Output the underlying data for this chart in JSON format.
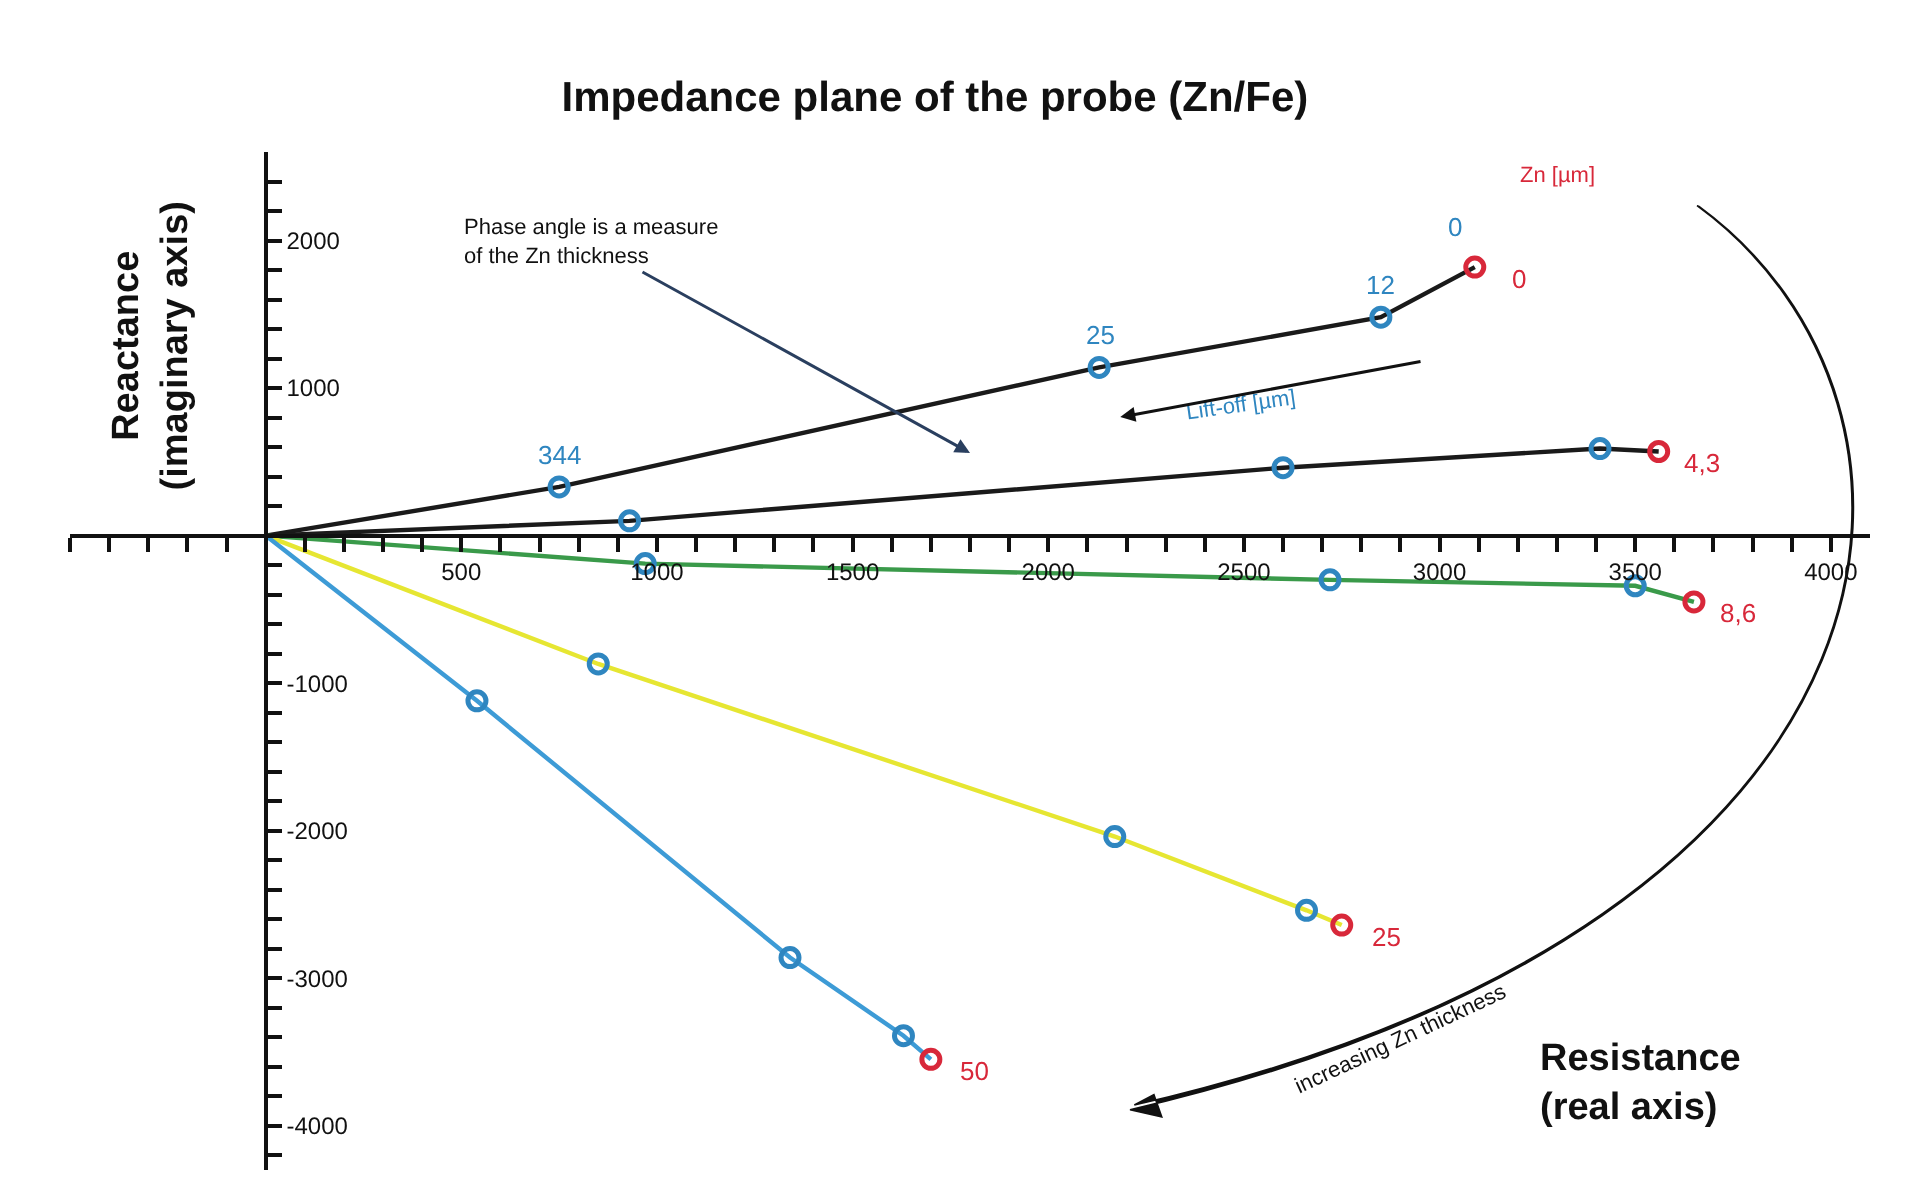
{
  "chart_data": {
    "type": "line",
    "title": "Impedance plane of the probe (Zn/Fe)",
    "xlabel": "Resistance\n(real axis)",
    "ylabel": "Reactance\n(imaginary axis)",
    "xlim": [
      -500,
      4100
    ],
    "ylim": [
      -4300,
      2600
    ],
    "xticks": [
      {
        "value": -500,
        "label": null
      },
      {
        "value": -400,
        "label": null
      },
      {
        "value": -300,
        "label": null
      },
      {
        "value": -200,
        "label": null
      },
      {
        "value": -100,
        "label": null
      },
      {
        "value": 100,
        "label": null
      },
      {
        "value": 200,
        "label": null
      },
      {
        "value": 300,
        "label": null
      },
      {
        "value": 400,
        "label": null
      },
      500,
      {
        "value": 600,
        "label": null
      },
      {
        "value": 700,
        "label": null
      },
      {
        "value": 800,
        "label": null
      },
      {
        "value": 900,
        "label": null
      },
      1000,
      {
        "value": 1100,
        "label": null
      },
      {
        "value": 1200,
        "label": null
      },
      {
        "value": 1300,
        "label": null
      },
      {
        "value": 1400,
        "label": null
      },
      1500,
      {
        "value": 1600,
        "label": null
      },
      {
        "value": 1700,
        "label": null
      },
      {
        "value": 1800,
        "label": null
      },
      {
        "value": 1900,
        "label": null
      },
      2000,
      {
        "value": 2100,
        "label": null
      },
      {
        "value": 2200,
        "label": null
      },
      {
        "value": 2300,
        "label": null
      },
      {
        "value": 2400,
        "label": null
      },
      2500,
      {
        "value": 2600,
        "label": null
      },
      {
        "value": 2700,
        "label": null
      },
      {
        "value": 2800,
        "label": null
      },
      {
        "value": 2900,
        "label": null
      },
      3000,
      {
        "value": 3100,
        "label": null
      },
      {
        "value": 3200,
        "label": null
      },
      {
        "value": 3300,
        "label": null
      },
      {
        "value": 3400,
        "label": null
      },
      3500,
      {
        "value": 3600,
        "label": null
      },
      {
        "value": 3700,
        "label": null
      },
      {
        "value": 3800,
        "label": null
      },
      {
        "value": 3900,
        "label": null
      },
      4000
    ],
    "yticks": [
      {
        "value": -4200,
        "label": null
      },
      -4000,
      {
        "value": -3800,
        "label": null
      },
      {
        "value": -3600,
        "label": null
      },
      {
        "value": -3400,
        "label": null
      },
      {
        "value": -3200,
        "label": null
      },
      -3000,
      {
        "value": -2800,
        "label": null
      },
      {
        "value": -2600,
        "label": null
      },
      {
        "value": -2400,
        "label": null
      },
      {
        "value": -2200,
        "label": null
      },
      -2000,
      {
        "value": -1800,
        "label": null
      },
      {
        "value": -1600,
        "label": null
      },
      {
        "value": -1400,
        "label": null
      },
      {
        "value": -1200,
        "label": null
      },
      -1000,
      {
        "value": -800,
        "label": null
      },
      {
        "value": -600,
        "label": null
      },
      {
        "value": -400,
        "label": null
      },
      {
        "value": -200,
        "label": null
      },
      {
        "value": 200,
        "label": null
      },
      {
        "value": 400,
        "label": null
      },
      {
        "value": 600,
        "label": null
      },
      {
        "value": 800,
        "label": null
      },
      1000,
      {
        "value": 1200,
        "label": null
      },
      {
        "value": 1400,
        "label": null
      },
      {
        "value": 1600,
        "label": null
      },
      {
        "value": 1800,
        "label": null
      },
      2000,
      {
        "value": 2200,
        "label": null
      },
      {
        "value": 2400,
        "label": null
      }
    ],
    "series": [
      {
        "marker": "none",
        "color": "#1a1a1a",
        "x": [
          0,
          750,
          2130,
          2850,
          3090
        ],
        "values": [
          0,
          330,
          1140,
          1480,
          1820
        ]
      },
      {
        "marker": "none",
        "color": "#1a1a1a",
        "x": [
          0,
          930,
          2600,
          3410,
          3560
        ],
        "values": [
          0,
          100,
          460,
          590,
          570
        ]
      },
      {
        "marker": "none",
        "color": "#3a9a4a",
        "x": [
          0,
          970,
          2720,
          3500,
          3650
        ],
        "values": [
          0,
          -190,
          -300,
          -340,
          -450
        ]
      },
      {
        "marker": "none",
        "color": "#e6e632",
        "x": [
          0,
          850,
          2170,
          2660,
          2750
        ],
        "values": [
          0,
          -870,
          -2040,
          -2540,
          -2640
        ]
      },
      {
        "marker": "none",
        "color": "#3d9bd6",
        "x": [
          0,
          540,
          1340,
          1630,
          1700
        ],
        "values": [
          0,
          -1120,
          -2860,
          -3390,
          -3550
        ]
      },
      {
        "type": "scatter",
        "marker": "circle",
        "name": "Lift-off [µm]",
        "color": "#2f86c0",
        "x": [
          750,
          2130,
          2850,
          930,
          2600,
          3410,
          970,
          2720,
          3500,
          850,
          2170,
          2660,
          540,
          1340,
          1630
        ],
        "values": [
          330,
          1140,
          1480,
          100,
          460,
          590,
          -190,
          -300,
          -340,
          -870,
          -2040,
          -2540,
          -1120,
          -2860,
          -3390
        ]
      },
      {
        "type": "scatter",
        "marker": "circle",
        "name": "Zn [µm]",
        "color": "#d8283a",
        "x": [
          3090,
          3560,
          3650,
          2750,
          1700
        ],
        "values": [
          1820,
          570,
          -450,
          -2640,
          -3550
        ]
      }
    ],
    "annotations": [
      "Phase angle is a measure\nof the Zn thickness",
      "increasing Zn thickness",
      {
        "text": "344",
        "x": 750,
        "y": 330
      },
      {
        "text": "25",
        "x": 2130,
        "y": 1140
      },
      {
        "text": "12",
        "x": 2850,
        "y": 1480
      },
      {
        "text": "0",
        "x": 3090,
        "y": 1820
      },
      {
        "text": "0",
        "x": 3090,
        "y": 1820
      },
      {
        "text": "4,3",
        "x": 3560,
        "y": 570
      },
      {
        "text": "8,6",
        "x": 3650,
        "y": -450
      },
      {
        "text": "25",
        "x": 2750,
        "y": -2640
      },
      {
        "text": "50",
        "x": 1700,
        "y": -3550
      }
    ]
  }
}
